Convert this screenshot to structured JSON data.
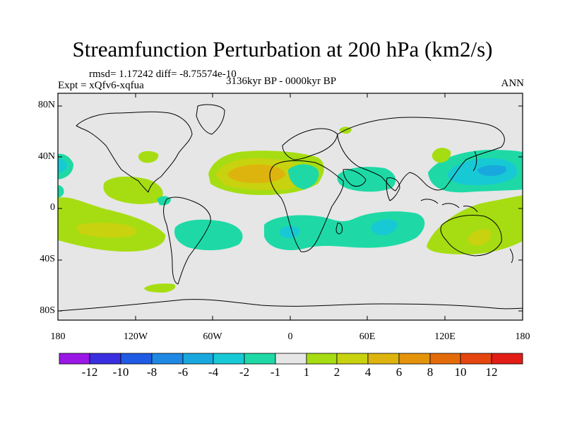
{
  "title": "Streamfunction Perturbation at 200 hPa (km2/s)",
  "stats": {
    "rmsd": "rmsd= 1.17242 diff= -8.75574e-10"
  },
  "expt": "Expt = xQfv6-xqfua",
  "period": "3136kyr BP - 0000kyr BP",
  "season": "ANN",
  "axes": {
    "lat_labels": [
      "80N",
      "40N",
      "0",
      "40S",
      "80S"
    ],
    "lon_labels": [
      "180",
      "120W",
      "60W",
      "0",
      "60E",
      "120E",
      "180"
    ]
  },
  "colorbar": {
    "labels": [
      "-12",
      "-10",
      "-8",
      "-6",
      "-4",
      "-2",
      "-1",
      "1",
      "2",
      "4",
      "6",
      "8",
      "10",
      "12"
    ],
    "colors": [
      "#9a17e6",
      "#3a2fe0",
      "#1f5be3",
      "#1e88e5",
      "#19a8dd",
      "#17c9d4",
      "#1ed9a6",
      "#e6e6e6",
      "#a6dd12",
      "#c9d20f",
      "#ddb40d",
      "#e3940b",
      "#e46b0a",
      "#e5450f",
      "#e21d16"
    ]
  },
  "colors": {
    "background": "#e6e6e6",
    "c_neg1": "#1ed9a6",
    "c_neg2": "#17c9d4",
    "c_neg4": "#19a8dd",
    "c_pos1": "#a6dd12",
    "c_pos2": "#c9d20f",
    "c_pos4": "#ddb40d"
  }
}
